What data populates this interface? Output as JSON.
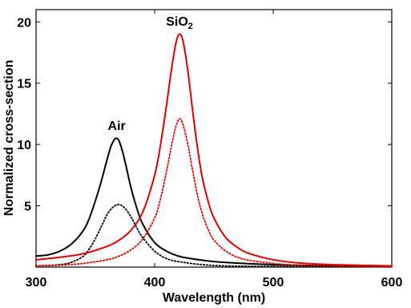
{
  "chart_data": {
    "type": "line",
    "xlabel": "Wavelength (nm)",
    "ylabel": "Normalized cross-section",
    "xlim": [
      300,
      600
    ],
    "ylim": [
      0,
      21
    ],
    "xticks": [
      300,
      400,
      500,
      600
    ],
    "yticks": [
      5,
      10,
      15,
      20
    ],
    "grid": false,
    "annotations": [
      {
        "text": "Air",
        "x": 368,
        "y": 11.2
      },
      {
        "text": "SiO",
        "subscript": "2",
        "x": 421,
        "y": 19.7
      }
    ],
    "series": [
      {
        "color": "#000000",
        "style": "solid",
        "peak_x": 368,
        "peak_y": 10.5,
        "x": [
          300,
          310,
          320,
          330,
          340,
          345,
          350,
          355,
          360,
          363,
          366,
          368,
          370,
          373,
          376,
          380,
          385,
          390,
          400,
          410,
          420,
          430,
          450,
          475,
          500,
          550,
          600
        ],
        "y": [
          0.9,
          1.0,
          1.3,
          1.9,
          3.0,
          4.0,
          5.4,
          7.0,
          8.8,
          9.8,
          10.4,
          10.5,
          10.3,
          9.4,
          8.2,
          6.5,
          4.8,
          3.5,
          2.0,
          1.3,
          0.9,
          0.7,
          0.45,
          0.3,
          0.2,
          0.1,
          0.05
        ]
      },
      {
        "color": "#000000",
        "style": "dotted",
        "peak_x": 370,
        "peak_y": 5.1,
        "x": [
          300,
          320,
          330,
          340,
          345,
          350,
          355,
          360,
          365,
          370,
          375,
          380,
          385,
          390,
          400,
          410,
          420,
          440,
          460,
          500,
          600
        ],
        "y": [
          0.1,
          0.2,
          0.4,
          0.9,
          1.5,
          2.3,
          3.3,
          4.3,
          4.9,
          5.1,
          4.8,
          4.1,
          3.2,
          2.4,
          1.3,
          0.7,
          0.45,
          0.2,
          0.1,
          0.05,
          0.02
        ]
      },
      {
        "color": "#e00000",
        "style": "solid",
        "peak_x": 421,
        "peak_y": 19.0,
        "x": [
          300,
          320,
          340,
          360,
          370,
          380,
          390,
          400,
          405,
          410,
          414,
          418,
          421,
          424,
          428,
          432,
          436,
          440,
          445,
          450,
          460,
          470,
          480,
          500,
          520,
          550,
          600
        ],
        "y": [
          0.6,
          0.8,
          1.1,
          1.7,
          2.2,
          3.0,
          4.5,
          7.5,
          10.0,
          13.2,
          16.0,
          18.3,
          19.0,
          18.4,
          16.0,
          12.8,
          9.8,
          7.4,
          5.4,
          4.0,
          2.4,
          1.6,
          1.1,
          0.6,
          0.35,
          0.2,
          0.1
        ]
      },
      {
        "color": "#e00000",
        "style": "dotted",
        "peak_x": 421,
        "peak_y": 12.1,
        "x": [
          300,
          320,
          340,
          360,
          370,
          380,
          390,
          400,
          405,
          410,
          414,
          418,
          421,
          424,
          428,
          432,
          436,
          440,
          445,
          450,
          460,
          470,
          480,
          500,
          520,
          550,
          600
        ],
        "y": [
          0.1,
          0.15,
          0.3,
          0.6,
          0.9,
          1.4,
          2.3,
          4.0,
          5.6,
          7.8,
          9.8,
          11.5,
          12.1,
          11.6,
          10.0,
          7.9,
          5.9,
          4.4,
          3.1,
          2.2,
          1.3,
          0.8,
          0.55,
          0.3,
          0.15,
          0.08,
          0.03
        ]
      }
    ]
  }
}
